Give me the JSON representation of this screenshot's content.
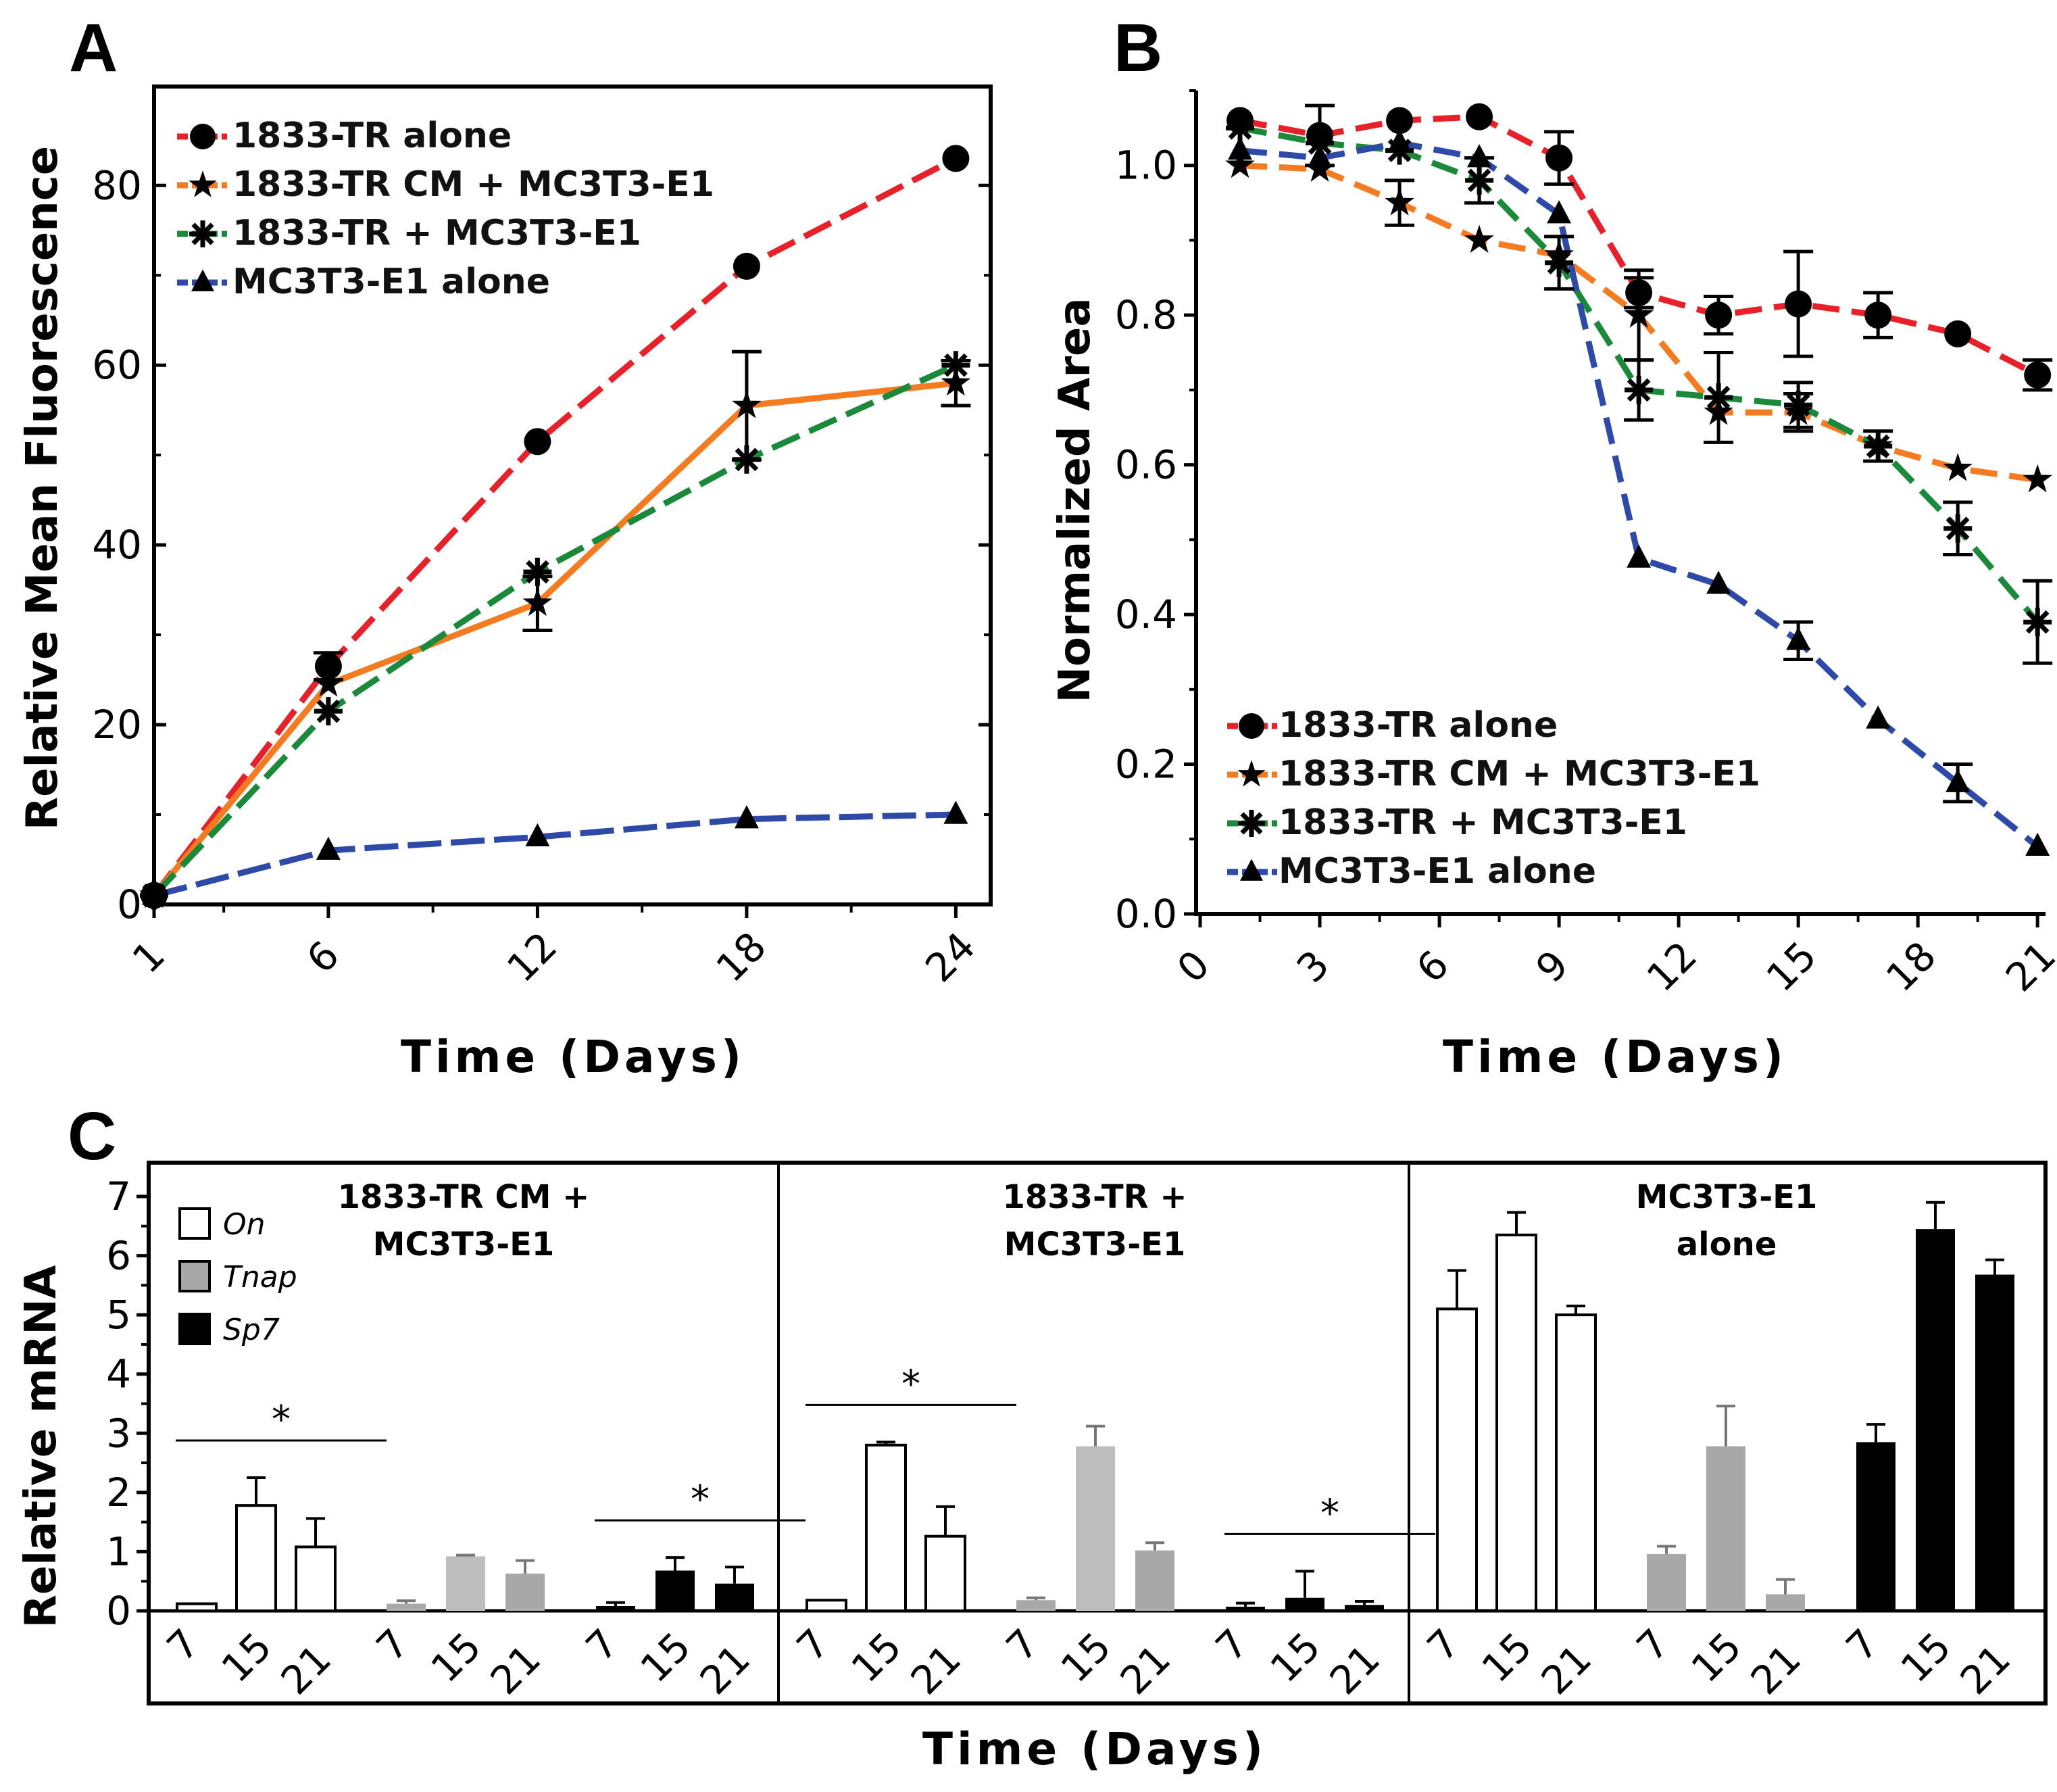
{
  "panels": {
    "a": "A",
    "b": "B",
    "c": "C"
  },
  "chart_data": [
    {
      "panel": "A",
      "type": "line",
      "xlabel": "Time (Days)",
      "ylabel": "Relative Mean Fluorescence",
      "x_ticks": [
        "1",
        "6",
        "12",
        "18",
        "24"
      ],
      "y_ticks": [
        "0",
        "20",
        "40",
        "60",
        "80"
      ],
      "xlim": [
        1,
        25
      ],
      "ylim": [
        0,
        91
      ],
      "legend_position": "top-left",
      "series": [
        {
          "name": "1833-TR alone",
          "color": "#e8202a",
          "marker": "circle",
          "x": [
            1,
            6,
            12,
            18,
            24
          ],
          "y": [
            1,
            26.5,
            51.5,
            71,
            83
          ],
          "err": [
            0,
            1.5,
            0,
            0,
            0
          ]
        },
        {
          "name": "1833-TR CM + MC3T3-E1",
          "color": "#f47b20",
          "marker": "star",
          "x": [
            1,
            6,
            12,
            18,
            24
          ],
          "y": [
            1,
            24.5,
            33.5,
            55.5,
            58
          ],
          "err": [
            0,
            0,
            3,
            6,
            2.5
          ]
        },
        {
          "name": "1833-TR + MC3T3-E1",
          "color": "#1a8a3a",
          "marker": "asterisk",
          "x": [
            1,
            6,
            12,
            18,
            24
          ],
          "y": [
            1,
            21.5,
            37,
            49.5,
            60
          ],
          "err": [
            0,
            0,
            0,
            0,
            0
          ]
        },
        {
          "name": "MC3T3-E1 alone",
          "color": "#2e4aa8",
          "marker": "triangle",
          "x": [
            1,
            6,
            12,
            18,
            24
          ],
          "y": [
            1,
            6,
            7.5,
            9.5,
            10
          ],
          "err": [
            0,
            0,
            0,
            0,
            0
          ]
        }
      ]
    },
    {
      "panel": "B",
      "type": "line",
      "xlabel": "Time (Days)",
      "ylabel": "Normalized Area",
      "x_ticks": [
        "0",
        "3",
        "6",
        "9",
        "12",
        "15",
        "18",
        "21"
      ],
      "y_ticks": [
        "0.0",
        "0.2",
        "0.4",
        "0.6",
        "0.8",
        "1.0"
      ],
      "xlim": [
        0,
        21.2
      ],
      "ylim": [
        0,
        1.1
      ],
      "legend_position": "bottom-left",
      "series": [
        {
          "name": "1833-TR alone",
          "color": "#e8202a",
          "marker": "circle",
          "x": [
            1,
            3,
            5,
            7,
            9,
            11,
            13,
            15,
            17,
            19,
            21
          ],
          "y": [
            1.06,
            1.04,
            1.06,
            1.065,
            1.01,
            0.83,
            0.8,
            0.815,
            0.8,
            0.775,
            0.72
          ],
          "err": [
            0,
            0.04,
            0,
            0,
            0.035,
            0.02,
            0.025,
            0.07,
            0.03,
            0,
            0.02
          ]
        },
        {
          "name": "1833-TR CM + MC3T3-E1",
          "color": "#f47b20",
          "marker": "star",
          "x": [
            1,
            3,
            5,
            7,
            9,
            11,
            13,
            15,
            17,
            19,
            21
          ],
          "y": [
            1.0,
            0.995,
            0.95,
            0.9,
            0.88,
            0.8,
            0.67,
            0.67,
            0.625,
            0.595,
            0.58
          ],
          "err": [
            0,
            0,
            0.03,
            0,
            0,
            0.06,
            0,
            0.025,
            0,
            0,
            0
          ]
        },
        {
          "name": "1833-TR + MC3T3-E1",
          "color": "#1a8a3a",
          "marker": "asterisk",
          "x": [
            1,
            3,
            5,
            7,
            9,
            11,
            13,
            15,
            17,
            19,
            21
          ],
          "y": [
            1.05,
            1.03,
            1.02,
            0.98,
            0.87,
            0.7,
            0.69,
            0.68,
            0.625,
            0.515,
            0.39
          ],
          "err": [
            0,
            0,
            0,
            0.03,
            0.035,
            0.04,
            0.06,
            0.03,
            0.02,
            0.035,
            0.055
          ]
        },
        {
          "name": "MC3T3-E1 alone",
          "color": "#2e4aa8",
          "marker": "triangle",
          "x": [
            1,
            3,
            5,
            7,
            9,
            11,
            13,
            15,
            17,
            19,
            21
          ],
          "y": [
            1.02,
            1.01,
            1.03,
            1.01,
            0.935,
            0.475,
            0.44,
            0.365,
            0.26,
            0.175,
            0.09
          ],
          "err": [
            0,
            0,
            0,
            0,
            0,
            0,
            0,
            0.025,
            0,
            0.025,
            0
          ]
        }
      ]
    },
    {
      "panel": "C",
      "type": "bar",
      "xlabel": "Time (Days)",
      "ylabel": "Relative mRNA",
      "y_ticks": [
        "0",
        "1",
        "2",
        "3",
        "4",
        "5",
        "6",
        "7"
      ],
      "ylim": [
        0,
        7.2
      ],
      "day_labels": [
        "7",
        "15",
        "21"
      ],
      "legend": [
        {
          "name": "On",
          "fill": "#ffffff"
        },
        {
          "name": "Tnap",
          "fill": "#a8a8a8"
        },
        {
          "name": "Sp7",
          "fill": "#000000"
        }
      ],
      "groups": [
        {
          "title": [
            "1833-TR CM +",
            "MC3T3-E1"
          ],
          "genes": [
            {
              "gene": "On",
              "values": [
                0.12,
                1.78,
                1.08
              ],
              "err": [
                0,
                0.47,
                0.48
              ]
            },
            {
              "gene": "Tnap",
              "values": [
                0.12,
                0.92,
                0.63
              ],
              "err": [
                0.05,
                0.02,
                0.22
              ]
            },
            {
              "gene": "Sp7",
              "values": [
                0.08,
                0.68,
                0.46
              ],
              "err": [
                0.06,
                0.22,
                0.28
              ]
            }
          ],
          "significance": [
            {
              "gene": "On",
              "label": "*"
            },
            {
              "gene": "Sp7",
              "label": "*"
            }
          ]
        },
        {
          "title": [
            "1833-TR +",
            "MC3T3-E1"
          ],
          "genes": [
            {
              "gene": "On",
              "values": [
                0.18,
                2.8,
                1.26
              ],
              "err": [
                0,
                0.05,
                0.5
              ]
            },
            {
              "gene": "Tnap",
              "values": [
                0.18,
                2.78,
                1.02
              ],
              "err": [
                0.04,
                0.34,
                0.13
              ]
            },
            {
              "gene": "Sp7",
              "values": [
                0.07,
                0.22,
                0.1
              ],
              "err": [
                0.06,
                0.45,
                0.06
              ]
            }
          ],
          "significance": [
            {
              "gene": "On",
              "label": "*"
            },
            {
              "gene": "Sp7",
              "label": "*"
            }
          ]
        },
        {
          "title": [
            "MC3T3-E1",
            "alone"
          ],
          "genes": [
            {
              "gene": "On",
              "values": [
                5.1,
                6.35,
                5.0
              ],
              "err": [
                0.65,
                0.38,
                0.15
              ]
            },
            {
              "gene": "Tnap",
              "values": [
                0.96,
                2.78,
                0.28
              ],
              "err": [
                0.13,
                0.68,
                0.25
              ]
            },
            {
              "gene": "Sp7",
              "values": [
                2.85,
                6.45,
                5.68
              ],
              "err": [
                0.3,
                0.45,
                0.25
              ]
            }
          ],
          "significance": []
        }
      ]
    }
  ]
}
